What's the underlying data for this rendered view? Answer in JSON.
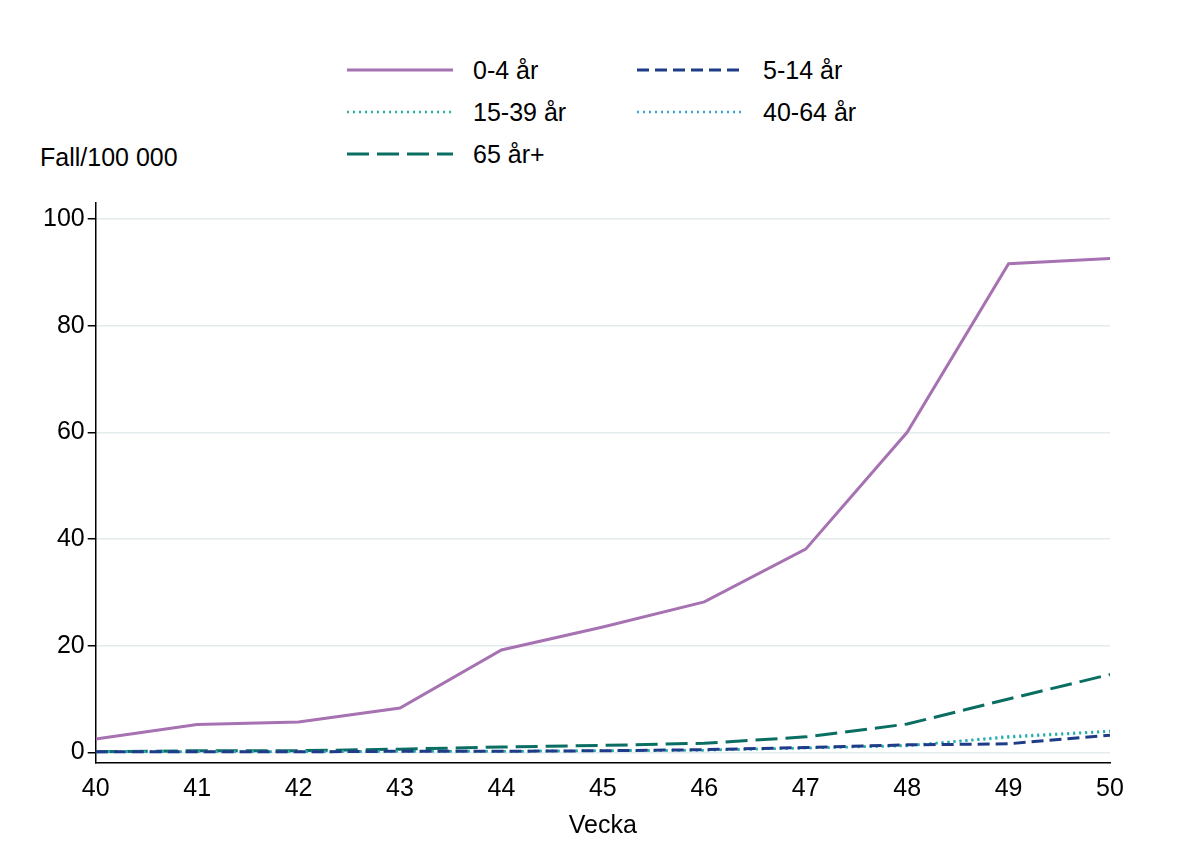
{
  "chart_data": {
    "type": "line",
    "y_label": "Fall/100 000",
    "x_label": "Vecka",
    "x": [
      40,
      41,
      42,
      43,
      44,
      45,
      46,
      47,
      48,
      49,
      50
    ],
    "xlim": [
      40,
      50
    ],
    "xticks": [
      40,
      41,
      42,
      43,
      44,
      45,
      46,
      47,
      48,
      49,
      50
    ],
    "ylim": [
      -2,
      103
    ],
    "yticks": [
      0,
      20,
      40,
      60,
      80,
      100
    ],
    "grid": true,
    "legend": "top",
    "series": [
      {
        "name": "0-4 år",
        "color": "#a672b2",
        "line_style": "solid",
        "values": [
          2.5,
          5.2,
          5.7,
          8.3,
          19.2,
          23.5,
          28.2,
          38.1,
          60,
          91.6,
          92.6
        ]
      },
      {
        "name": "5-14 år",
        "color": "#1f3c88",
        "line_style": "dashed",
        "values": [
          0.1,
          0.1,
          0.1,
          0.2,
          0.2,
          0.3,
          0.5,
          0.9,
          1.4,
          1.6,
          3.2
        ]
      },
      {
        "name": "15-39 år",
        "color": "#22b3a3",
        "line_style": "dotted",
        "values": [
          0.1,
          0.1,
          0.1,
          0.2,
          0.2,
          0.3,
          0.4,
          0.8,
          1.3,
          2.8,
          3.9
        ]
      },
      {
        "name": "40-64 år",
        "color": "#3aa3dc",
        "line_style": "dotted",
        "values": [
          0.1,
          0.1,
          0.1,
          0.2,
          0.2,
          0.3,
          0.4,
          0.8,
          1.2,
          3.0,
          4.0
        ]
      },
      {
        "name": "65 år+",
        "color": "#0b6e63",
        "line_style": "long_dash",
        "values": [
          0.1,
          0.3,
          0.3,
          0.6,
          1.0,
          1.3,
          1.7,
          2.9,
          5.3,
          10,
          14.6
        ]
      }
    ]
  }
}
